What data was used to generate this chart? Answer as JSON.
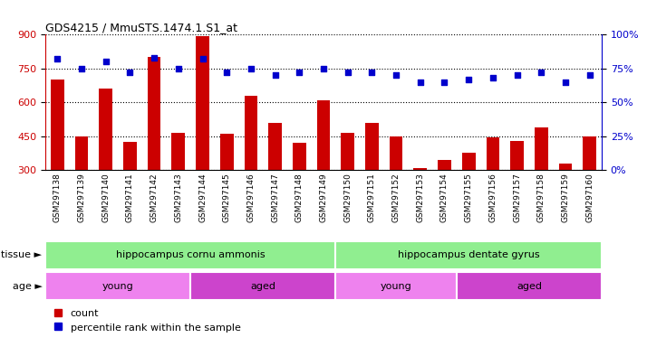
{
  "title": "GDS4215 / MmuSTS.1474.1.S1_at",
  "samples": [
    "GSM297138",
    "GSM297139",
    "GSM297140",
    "GSM297141",
    "GSM297142",
    "GSM297143",
    "GSM297144",
    "GSM297145",
    "GSM297146",
    "GSM297147",
    "GSM297148",
    "GSM297149",
    "GSM297150",
    "GSM297151",
    "GSM297152",
    "GSM297153",
    "GSM297154",
    "GSM297155",
    "GSM297156",
    "GSM297157",
    "GSM297158",
    "GSM297159",
    "GSM297160"
  ],
  "counts": [
    700,
    450,
    660,
    425,
    800,
    465,
    895,
    460,
    630,
    510,
    420,
    610,
    465,
    510,
    450,
    310,
    345,
    375,
    445,
    430,
    490,
    330,
    450
  ],
  "percentiles": [
    82,
    75,
    80,
    72,
    83,
    75,
    82,
    72,
    75,
    70,
    72,
    75,
    72,
    72,
    70,
    65,
    65,
    67,
    68,
    70,
    72,
    65,
    70
  ],
  "ylim_left": [
    300,
    900
  ],
  "ylim_right": [
    0,
    100
  ],
  "yticks_left": [
    300,
    450,
    600,
    750,
    900
  ],
  "yticks_right": [
    0,
    25,
    50,
    75,
    100
  ],
  "bar_color": "#cc0000",
  "dot_color": "#0000cc",
  "tissue_groups": [
    {
      "label": "hippocampus cornu ammonis",
      "start": 0,
      "end": 12,
      "color": "#90ee90"
    },
    {
      "label": "hippocampus dentate gyrus",
      "start": 12,
      "end": 23,
      "color": "#90ee90"
    }
  ],
  "age_groups": [
    {
      "label": "young",
      "start": 0,
      "end": 6,
      "color": "#ee82ee"
    },
    {
      "label": "aged",
      "start": 6,
      "end": 12,
      "color": "#cc44cc"
    },
    {
      "label": "young",
      "start": 12,
      "end": 17,
      "color": "#ee82ee"
    },
    {
      "label": "aged",
      "start": 17,
      "end": 23,
      "color": "#cc44cc"
    }
  ],
  "tissue_label": "tissue",
  "age_label": "age",
  "legend_count_label": "count",
  "legend_pct_label": "percentile rank within the sample",
  "bg_color": "#ffffff",
  "plot_bg": "#ffffff"
}
